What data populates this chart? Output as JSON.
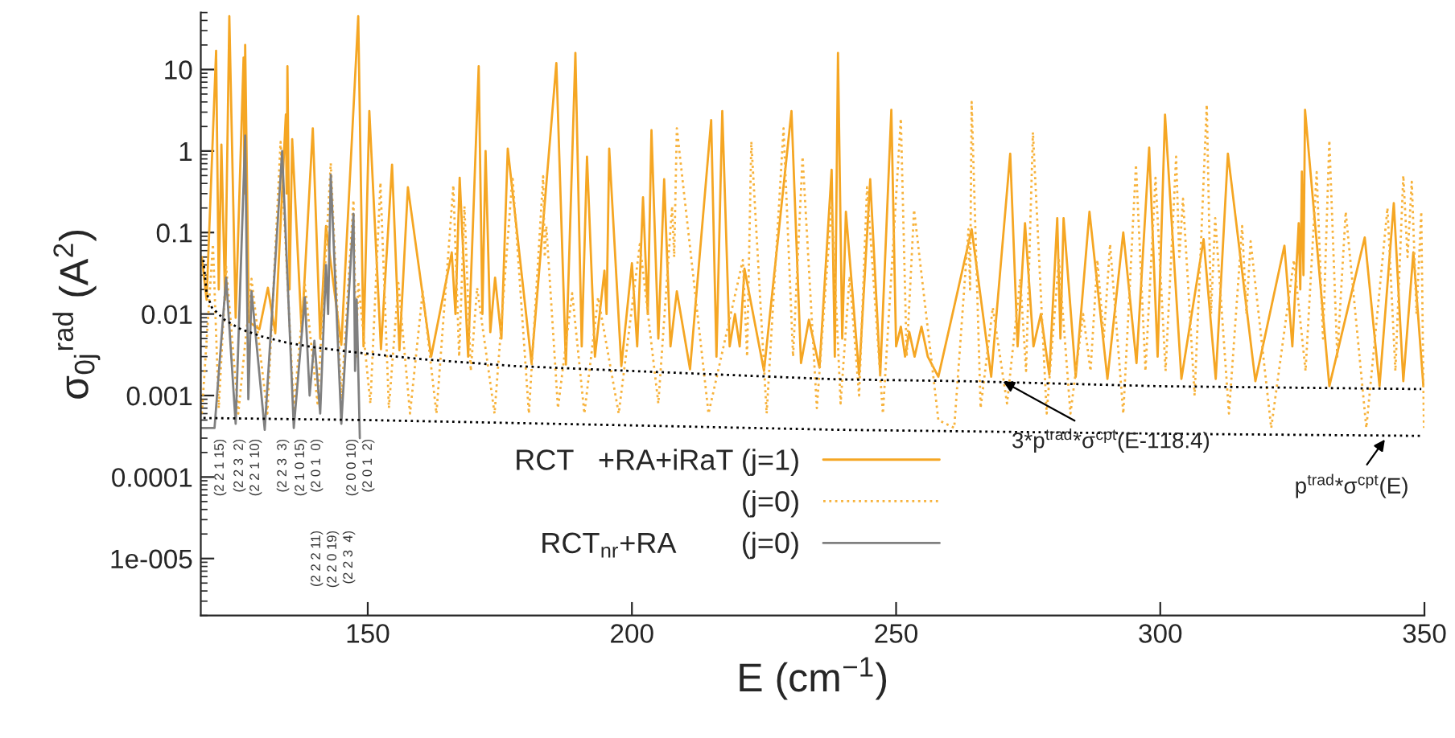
{
  "chart_data": {
    "type": "line",
    "xlabel": "E (cm$^{−1}$)",
    "ylabel": "σ$_{0j}$$^{rad}$ (A$^{2}$)",
    "log": "y",
    "xlim": [
      118.4,
      350
    ],
    "xticks": [
      150,
      200,
      250,
      300,
      350
    ],
    "ylim": [
      2e-06,
      50
    ],
    "yticks": [
      {
        "value": 1e-05,
        "label": "1e-005"
      },
      0.0001,
      0.001,
      0.01,
      0.1,
      1,
      10
    ],
    "legend": "bottom",
    "series": [
      {
        "name": "RCT   +RA+iRaT (j=1)",
        "line_style": "solid",
        "color": "#f5a623",
        "x": [
          118.6,
          119.5,
          121.3,
          121.8,
          122.3,
          123.0,
          123.8,
          125.0,
          126.5,
          126.65,
          126.8,
          127.5,
          129.5,
          131.1,
          132.5,
          134.5,
          134.65,
          134.8,
          135.2,
          135.7,
          137.5,
          139.6,
          141.0,
          142.1,
          145.0,
          148.2,
          149.2,
          150.3,
          152.5,
          154.6,
          156.0,
          157.6,
          162.0,
          165.9,
          166.6,
          167.4,
          169.0,
          171.0,
          171.7,
          172.3,
          173.2,
          174.1,
          175.3,
          176.5,
          181.0,
          185.7,
          187.5,
          189.3,
          190.5,
          191.5,
          193.0,
          194.8,
          195.2,
          195.7,
          198.0,
          200.0,
          201.0,
          202.1,
          203.0,
          203.7,
          205.0,
          206.1,
          207.3,
          208.5,
          211.0,
          215.0,
          216.0,
          217.1,
          218.5,
          219.5,
          220.4,
          221.3,
          225.0,
          230.2,
          232.0,
          233.5,
          235.5,
          237.8,
          238.4,
          239.0,
          239.8,
          240.5,
          243.0,
          245.1,
          247.0,
          249.1,
          250.0,
          250.9,
          251.7,
          252.5,
          253.5,
          254.8,
          256.0,
          258.0,
          264.3,
          268.0,
          271.6,
          273.0,
          274.4,
          276.0,
          277.4,
          279.0,
          280.5,
          281.1,
          281.7,
          284.0,
          286.6,
          290.0,
          293.0,
          295.5,
          297.9,
          299.5,
          300.9,
          304.0,
          308.2,
          310.5,
          312.8,
          318.0,
          323.5,
          325.0,
          326.2,
          326.5,
          326.8,
          327.1,
          327.4,
          332.0,
          338.7,
          341.5,
          344.2,
          346.0,
          347.9,
          349.8
        ],
        "values": [
          0.05,
          0.015,
          17,
          0.02,
          1.2,
          0.015,
          45,
          0.009,
          14,
          0.3,
          20,
          0.008,
          0.0065,
          0.021,
          0.0058,
          2.8,
          0.3,
          11,
          0.02,
          1.4,
          0.006,
          1.9,
          0.005,
          0.12,
          0.0042,
          45,
          0.004,
          3.1,
          0.0037,
          0.68,
          0.0036,
          0.36,
          0.003,
          0.057,
          0.01,
          0.47,
          0.003,
          11,
          0.01,
          1.0,
          0.006,
          0.028,
          0.005,
          1.07,
          0.0025,
          12,
          0.0024,
          16,
          0.004,
          0.85,
          0.003,
          0.034,
          0.01,
          1.07,
          0.0023,
          0.042,
          0.004,
          0.27,
          0.01,
          1.8,
          0.005,
          0.45,
          0.004,
          0.019,
          0.0021,
          2.4,
          0.003,
          3.1,
          0.004,
          0.01,
          0.004,
          0.036,
          0.002,
          3.1,
          0.0025,
          0.0085,
          0.0022,
          0.59,
          0.003,
          16,
          0.005,
          0.18,
          0.0018,
          0.45,
          0.0018,
          3.2,
          0.004,
          0.007,
          0.003,
          0.006,
          0.003,
          0.007,
          0.003,
          0.0017,
          0.11,
          0.0017,
          0.93,
          0.004,
          0.13,
          0.004,
          0.01,
          0.0018,
          0.15,
          0.005,
          0.15,
          0.0017,
          0.18,
          0.0016,
          0.1,
          0.0025,
          1.1,
          0.003,
          2.8,
          0.0016,
          0.083,
          0.0016,
          0.93,
          0.0015,
          0.069,
          0.004,
          0.13,
          0.02,
          0.56,
          0.03,
          3.2,
          0.0013,
          0.087,
          0.0013,
          0.23,
          0.0015,
          0.057,
          0.0013
        ]
      },
      {
        "name": "(j=0)",
        "line_style": "dotted",
        "color": "#f7b23b",
        "x": [
          118.6,
          120.7,
          121.8,
          123.2,
          125.5,
          128.0,
          131.0,
          133.5,
          136.0,
          138.1,
          140.5,
          143.0,
          145.0,
          147.3,
          147.8,
          148.2,
          150.5,
          152.4,
          154.0,
          155.8,
          158.0,
          160.4,
          163.0,
          166.2,
          167.3,
          168.3,
          169.5,
          170.7,
          174.0,
          177.4,
          180.5,
          183.2,
          183.5,
          183.8,
          186.0,
          188.7,
          191.0,
          193.6,
          197.5,
          201.5,
          205.0,
          207.6,
          208.0,
          208.5,
          214.5,
          221.0,
          221.8,
          222.6,
          225.5,
          228.7,
          230.5,
          232.3,
          235.0,
          237.8,
          239.5,
          241.2,
          243.0,
          244.5,
          247.5,
          250.9,
          252.0,
          253.4,
          258.0,
          261.0,
          263.7,
          264.0,
          264.3,
          266.0,
          268.3,
          271.0,
          273.5,
          274.6,
          275.9,
          278.5,
          280.8,
          283.0,
          285.4,
          286.8,
          288.1,
          289.3,
          290.5,
          293.0,
          295.4,
          297.2,
          299.1,
          301.0,
          303.0,
          303.6,
          304.3,
          306.5,
          308.8,
          309.6,
          310.4,
          313.0,
          315.5,
          316.3,
          317.1,
          321.0,
          325.3,
          327.5,
          329.6,
          330.8,
          332.0,
          333.5,
          335.1,
          339.0,
          343.0,
          344.5,
          346.0,
          346.8,
          347.6,
          348.5,
          349.4,
          349.9
        ],
        "values": [
          0.0006,
          0.072,
          0.0007,
          0.038,
          0.0006,
          0.027,
          0.0006,
          1.3,
          0.0007,
          0.023,
          0.0008,
          0.71,
          0.0009,
          0.25,
          0.003,
          0.025,
          0.0008,
          0.41,
          0.0007,
          0.024,
          0.0006,
          0.019,
          0.0006,
          0.38,
          0.003,
          0.21,
          0.002,
          0.021,
          0.0006,
          0.49,
          0.0006,
          0.49,
          0.05,
          0.12,
          0.0007,
          0.018,
          0.0006,
          0.016,
          0.0006,
          0.072,
          0.0008,
          0.21,
          0.05,
          1.9,
          0.0006,
          0.046,
          0.003,
          1.3,
          0.0006,
          1.9,
          0.003,
          0.85,
          0.0007,
          0.22,
          0.0008,
          0.029,
          0.001,
          0.36,
          0.0006,
          2.5,
          0.003,
          0.19,
          0.0005,
          0.0004,
          0.11,
          0.02,
          4.0,
          0.0007,
          0.012,
          0.0008,
          0.027,
          0.002,
          1.7,
          0.0006,
          0.046,
          0.0006,
          0.01,
          0.002,
          0.046,
          0.005,
          0.072,
          0.0006,
          0.68,
          0.002,
          0.47,
          0.002,
          0.85,
          0.05,
          0.26,
          0.001,
          3.7,
          0.01,
          0.15,
          0.0006,
          0.12,
          0.01,
          0.078,
          0.0004,
          0.046,
          0.002,
          0.55,
          0.005,
          1.35,
          0.003,
          0.18,
          0.0004,
          0.2,
          0.002,
          0.5,
          0.05,
          0.42,
          0.01,
          0.18,
          0.0004
        ]
      },
      {
        "name": "RCT$_{nr}$+RA        (j=0)",
        "line_style": "solid",
        "color": "#808080",
        "x": [
          118.6,
          121.0,
          123.2,
          125.0,
          126.8,
          127.4,
          128.0,
          130.5,
          133.8,
          136.0,
          138.1,
          139.0,
          139.9,
          141.0,
          142.1,
          142.5,
          143.0,
          145.0,
          147.3,
          147.6,
          147.9,
          148.5
        ],
        "values": [
          0.0004,
          0.0004,
          0.028,
          0.00045,
          1.55,
          0.0009,
          0.019,
          0.00038,
          1.0,
          0.0004,
          0.016,
          0.001,
          0.0047,
          0.0006,
          0.04,
          0.01,
          0.51,
          0.00045,
          0.17,
          0.002,
          0.015,
          0.0003
        ]
      },
      {
        "line_style": "dotted",
        "color": "#000000",
        "x": [
          118.9,
          119.5,
          120.5,
          122.9,
          126,
          130,
          135,
          140,
          147.3,
          160,
          177.7,
          200,
          238.7,
          263,
          300,
          349.4
        ],
        "values": [
          0.046,
          0.018,
          0.012,
          0.0085,
          0.0065,
          0.0053,
          0.0044,
          0.0039,
          0.0034,
          0.0028,
          0.0023,
          0.002,
          0.00158,
          0.0015,
          0.0013,
          0.0012
        ]
      },
      {
        "line_style": "dotted",
        "color": "#000000",
        "x": [
          118.9,
          150,
          200,
          238.7,
          300,
          349.4
        ],
        "values": [
          0.00053,
          0.0005,
          0.00043,
          0.00038,
          0.00034,
          0.00032
        ]
      }
    ],
    "annotations": [
      {
        "text": "3*p$^{trad}$*σ$^{cpt}$(E-118.4)",
        "x": 269.5,
        "y": 0.00158
      },
      {
        "text": "p$^{trad}$*σ$^{cpt}$(E)",
        "x": 343,
        "y": 0.00032
      },
      "(2 2 1 15)",
      "(2 2 3  2)",
      "(2 2 1 10)",
      "(2 2 3  3)",
      "(2 1 0 15)",
      "(2 0 1  0)",
      "(2 0 0 10)",
      "(2 0 1  2)",
      "(2 2 2 11)",
      "(2 2 0 19)",
      "(2 2 3  4)"
    ]
  }
}
